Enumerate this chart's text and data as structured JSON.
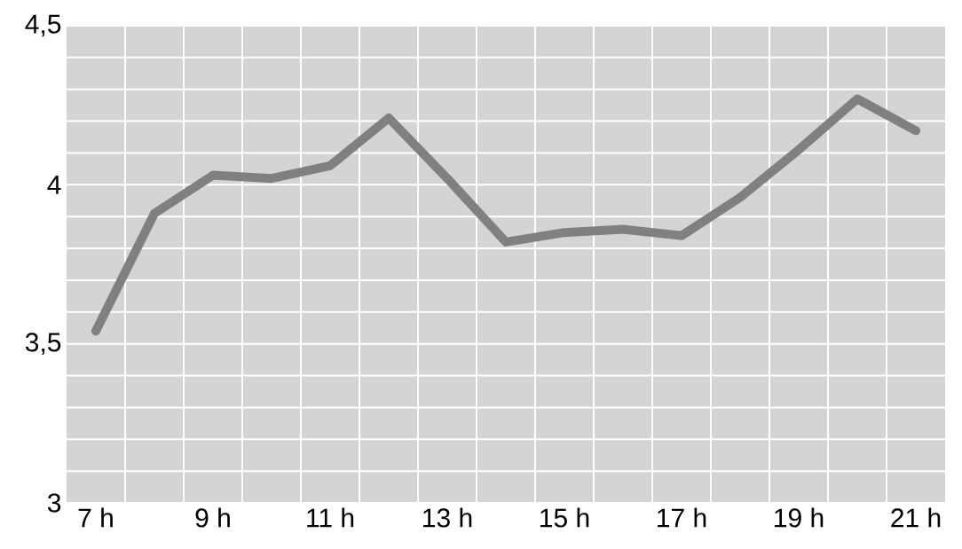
{
  "chart_data": {
    "type": "line",
    "categories": [
      "7 h",
      null,
      "9 h",
      null,
      "11 h",
      null,
      "13 h",
      null,
      "15 h",
      null,
      "17 h",
      null,
      "19 h",
      null,
      "21 h"
    ],
    "series": [
      {
        "color": "#808080",
        "values": [
          3.54,
          3.91,
          4.03,
          4.02,
          4.06,
          4.21,
          4.02,
          3.82,
          3.85,
          3.86,
          3.84,
          3.96,
          4.11,
          4.27,
          4.17
        ]
      }
    ],
    "ylim": [
      3,
      4.5
    ],
    "yticks": [
      3,
      {
        "value": 3.5,
        "label": "3,5"
      },
      4,
      {
        "value": 4.5,
        "label": "4,5"
      }
    ],
    "grid": true,
    "marker": "none",
    "line_style": "solid"
  }
}
